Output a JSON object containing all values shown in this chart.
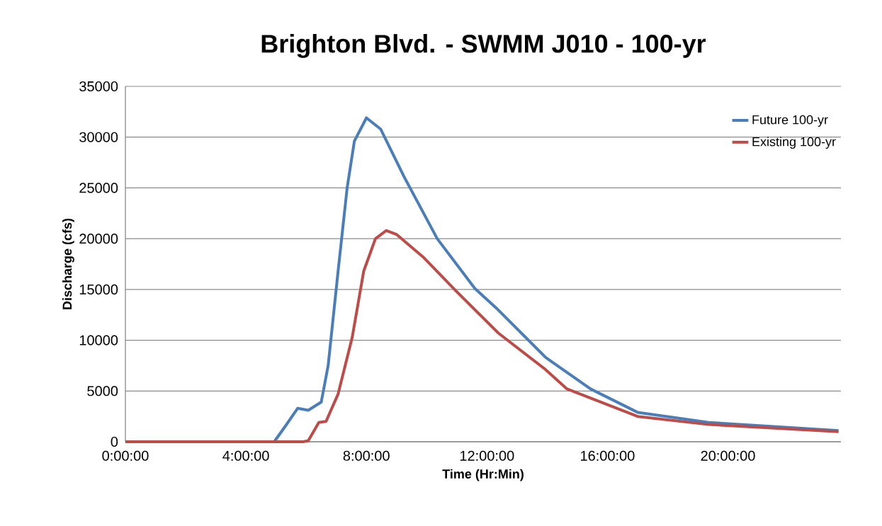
{
  "chart_data": {
    "type": "line",
    "title": "Brighton Blvd. - SWMM J010 - 100-yr",
    "xlabel": "Time (Hr:Min)",
    "ylabel": "Discharge (cfs)",
    "series": [
      {
        "name": "Future 100-yr",
        "color": "#4a7ebb",
        "x": [
          0,
          4.94,
          5.3,
          5.72,
          6.07,
          6.5,
          6.73,
          7.06,
          7.36,
          7.6,
          8.0,
          8.47,
          9.25,
          10.35,
          11.6,
          12.3,
          13.95,
          15.44,
          17.0,
          19.36,
          23.67
        ],
        "values": [
          0,
          0,
          1500,
          3300,
          3100,
          3900,
          7500,
          16800,
          25000,
          29600,
          31900,
          30800,
          26100,
          20000,
          15100,
          13200,
          8300,
          5200,
          2900,
          1900,
          1100
        ]
      },
      {
        "name": "Existing 100-yr",
        "color": "#be4b48",
        "x": [
          0,
          5.9,
          6.07,
          6.42,
          6.66,
          7.06,
          7.53,
          7.91,
          8.3,
          8.66,
          9.01,
          9.88,
          10.96,
          12.38,
          13.95,
          14.66,
          17.0,
          19.36,
          23.67
        ],
        "values": [
          0,
          0,
          100,
          1900,
          2000,
          4700,
          10300,
          16800,
          20000,
          20800,
          20400,
          18200,
          14900,
          10700,
          7100,
          5200,
          2500,
          1700,
          1000
        ]
      }
    ],
    "xlim": [
      0,
      23.75
    ],
    "xticks": [
      {
        "value": 0,
        "label": "0:00:00"
      },
      {
        "value": 4,
        "label": "4:00:00"
      },
      {
        "value": 8,
        "label": "8:00:00"
      },
      {
        "value": 12,
        "label": "12:00:00"
      },
      {
        "value": 16,
        "label": "16:00:00"
      },
      {
        "value": 20,
        "label": "20:00:00"
      }
    ],
    "ylim": [
      0,
      35000
    ],
    "yticks": [
      0,
      5000,
      10000,
      15000,
      20000,
      25000,
      30000,
      35000
    ],
    "grid": "y",
    "legend": "top right",
    "marker": "none",
    "line_style": "solid"
  }
}
